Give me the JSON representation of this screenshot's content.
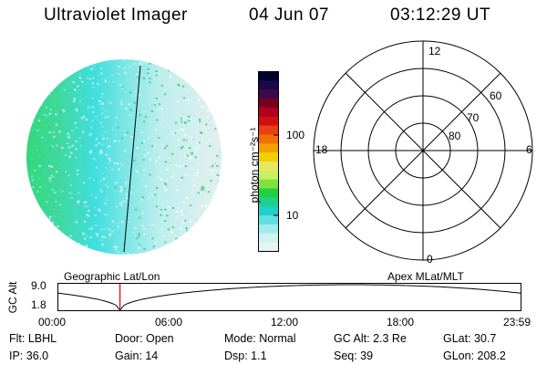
{
  "header": {
    "instrument": "Ultraviolet Imager",
    "date": "04 Jun 07",
    "time": "03:12:29 UT"
  },
  "colorbar": {
    "unit_label": "photon cm⁻²s⁻¹",
    "ticks": [
      "100",
      "10"
    ],
    "colors": [
      "#000033",
      "#1a0a4a",
      "#3a0a4a",
      "#7a0020",
      "#b0001a",
      "#d01010",
      "#e84010",
      "#f07000",
      "#f0a000",
      "#f0d000",
      "#e8e860",
      "#c8f060",
      "#80e040",
      "#20d040",
      "#20d090",
      "#20d0d0",
      "#60e0e0",
      "#a0ecec",
      "#d0f2f2",
      "#e8f4f4"
    ]
  },
  "polar_grid": {
    "mlt_labels": [
      "12",
      "18",
      "6",
      "0"
    ],
    "lat_labels": [
      "60",
      "70",
      "80"
    ]
  },
  "timeline": {
    "ylabel": "GC Alt",
    "ymax": "9.0",
    "ymin": "1.8",
    "left_title": "Geographic Lat/Lon",
    "right_title": "Apex MLat/MLT",
    "xticks": [
      "00:00",
      "06:00",
      "12:00",
      "18:00",
      "23:59"
    ],
    "current_time_hours": 3.2
  },
  "status": {
    "flt": "Flt: LBHL",
    "door": "Door: Open",
    "mode": "Mode: Normal",
    "gc_alt": "GC Alt: 2.3 Re",
    "glat": "GLat:  30.7",
    "ip": "IP: 36.0",
    "gain": "Gain: 14",
    "dsp": "Dsp:    1.1",
    "seq": "Seq: 39",
    "glon": "GLon: 208.2"
  }
}
